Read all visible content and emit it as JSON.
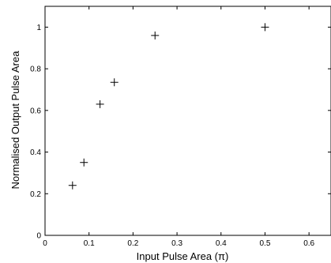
{
  "chart_data": {
    "type": "scatter",
    "marker": "plus",
    "xlabel": "Input Pulse Area (π)",
    "ylabel": "Normalised Output Pulse Area",
    "xlim": [
      0,
      0.65
    ],
    "ylim": [
      0,
      1.1
    ],
    "xticks": [
      0,
      0.1,
      0.2,
      0.3,
      0.4,
      0.5,
      0.6
    ],
    "yticks": [
      0,
      0.2,
      0.4,
      0.6,
      0.8,
      1
    ],
    "xtick_labels": [
      "0",
      "0.1",
      "0.2",
      "0.3",
      "0.4",
      "0.5",
      "0.6"
    ],
    "ytick_labels": [
      "0",
      "0.2",
      "0.4",
      "0.6",
      "0.8",
      "1"
    ],
    "grid": false,
    "series": [
      {
        "x": [
          0.0625,
          0.0884,
          0.125,
          0.1575,
          0.25,
          0.5
        ],
        "y": [
          0.24,
          0.35,
          0.63,
          0.735,
          0.96,
          1.0
        ]
      }
    ]
  }
}
